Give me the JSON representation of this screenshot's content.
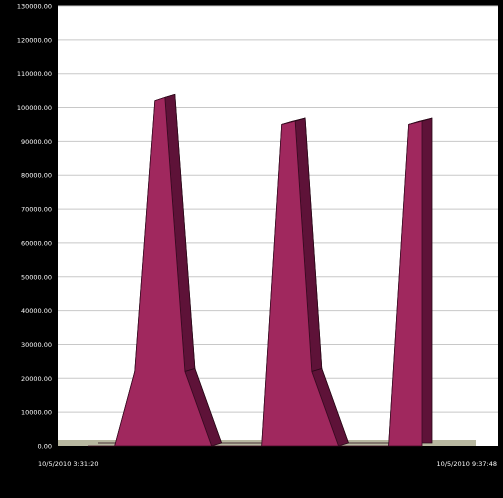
{
  "chart_data": {
    "type": "area",
    "title": "",
    "xlabel": "",
    "ylabel": "",
    "ylim": [
      0,
      130000
    ],
    "y_ticks": [
      0,
      10000,
      20000,
      30000,
      40000,
      50000,
      60000,
      70000,
      80000,
      90000,
      100000,
      110000,
      120000,
      130000
    ],
    "y_tick_labels": [
      "0.00",
      "10000.00",
      "20000.00",
      "30000.00",
      "40000.00",
      "50000.00",
      "60000.00",
      "70000.00",
      "80000.00",
      "90000.00",
      "100000.00",
      "110000.00",
      "120000.00",
      "130000.00"
    ],
    "x_tick_labels": [
      "10/5/2010 3:31:20",
      "10/5/2010 9:37:48"
    ],
    "grid": true,
    "three_d": true,
    "x": [
      0,
      8,
      14,
      20,
      23,
      29,
      37,
      45,
      52,
      58,
      62,
      67,
      75,
      83,
      90,
      96,
      100
    ],
    "series": [
      {
        "values": [
          0,
          0,
          22000,
          102000,
          103000,
          22000,
          0,
          0,
          0,
          95000,
          96000,
          22000,
          0,
          0,
          0,
          95000,
          96000
        ]
      }
    ],
    "colors": {
      "fill_front": "#a0285e",
      "fill_side": "#5e1238",
      "fill_top": "#7a1a48",
      "plot_background": "#ffffff",
      "floor": "#b8b8a0",
      "gridline": "#c8c8c8",
      "axis_text": "#ffffff"
    }
  }
}
